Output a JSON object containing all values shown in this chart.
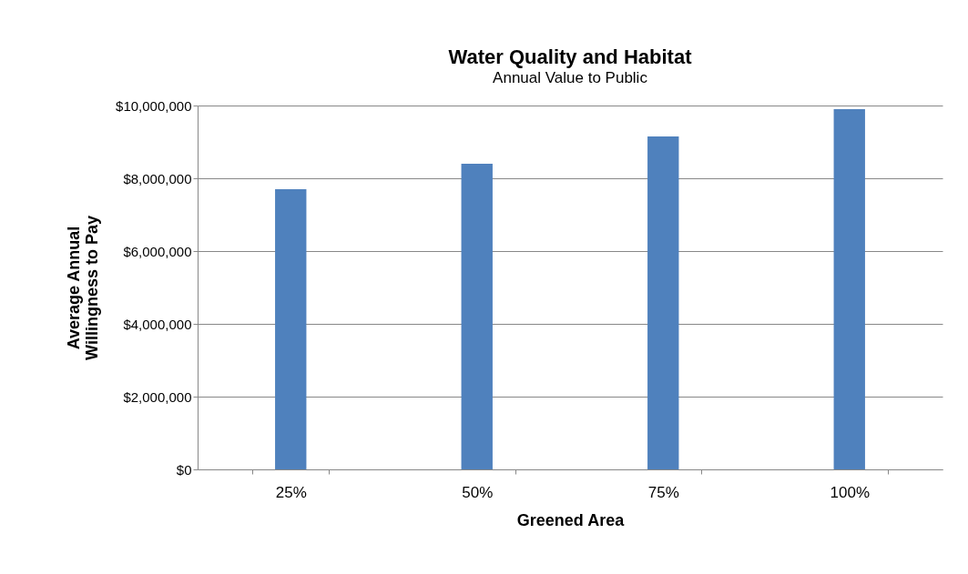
{
  "chart_data": {
    "type": "bar",
    "title": "Water Quality and Habitat",
    "subtitle": "Annual Value to Public",
    "xlabel": "Greened Area",
    "ylabel": "Average Annual\nWillingness to Pay",
    "categories": [
      "25%",
      "50%",
      "75%",
      "100%"
    ],
    "values": [
      7700000,
      8400000,
      9150000,
      9900000
    ],
    "color": "#4f81bd",
    "ylim": [
      0,
      10000000
    ],
    "yticks": [
      {
        "value": 0,
        "label": "$0"
      },
      {
        "value": 2000000,
        "label": "$2,000,000"
      },
      {
        "value": 4000000,
        "label": "$4,000,000"
      },
      {
        "value": 6000000,
        "label": "$6,000,000"
      },
      {
        "value": 8000000,
        "label": "$8,000,000"
      },
      {
        "value": 10000000,
        "label": "$10,000,000"
      }
    ],
    "grid": "y"
  }
}
